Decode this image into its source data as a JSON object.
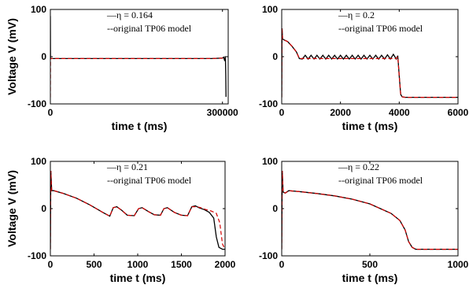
{
  "colors": {
    "simulated": "#000000",
    "original": "#d40000"
  },
  "chart_data": [
    {
      "type": "line",
      "xlabel": "time t (ms)",
      "ylabel": "Voltage V (mV)",
      "xlim": [
        0,
        310000
      ],
      "ylim": [
        -100,
        100
      ],
      "xticks": [
        0,
        300000
      ],
      "xtick_labels": [
        "0",
        "300000"
      ],
      "yticks": [
        -100,
        0,
        100
      ],
      "ytick_labels": [
        "-100",
        "0",
        "100"
      ],
      "legend": {
        "position": "top-right",
        "entries": [
          "—η = 0.164",
          "--original TP06 model"
        ]
      },
      "series": [
        {
          "style": "solid",
          "color": "#000000",
          "x": [
            0,
            300,
            1200,
            4000,
            50000,
            150000,
            280000,
            300000,
            302000,
            304000,
            304800,
            305200,
            305700,
            306200
          ],
          "y": [
            86,
            -3,
            -4,
            -4,
            -4,
            -4,
            -4,
            -3,
            -1,
            -9,
            1,
            -5,
            -40,
            -85
          ]
        },
        {
          "style": "dashed",
          "color": "#d40000",
          "x": [
            0,
            300,
            1200,
            4000,
            50000,
            150000,
            280000,
            300000,
            305000
          ],
          "y": [
            -86,
            -3,
            -4,
            -4,
            -4,
            -4,
            -4,
            -3,
            -3
          ]
        }
      ]
    },
    {
      "type": "line",
      "xlabel": "time t (ms)",
      "ylabel": "",
      "xlim": [
        0,
        6000
      ],
      "ylim": [
        -100,
        100
      ],
      "xticks": [
        0,
        2000,
        4000,
        6000
      ],
      "xtick_labels": [
        "0",
        "2000",
        "4000",
        "6000"
      ],
      "yticks": [
        -100,
        0,
        100
      ],
      "ytick_labels": [
        "-100",
        "0",
        "100"
      ],
      "legend": {
        "position": "top-right",
        "entries": [
          "—η = 0.2",
          "--original TP06 model"
        ]
      },
      "series": [
        {
          "style": "solid",
          "color": "#000000",
          "x": [
            0,
            10,
            30,
            60,
            200,
            350,
            500,
            600,
            700,
            800,
            900,
            1000,
            1100,
            1200,
            1300,
            1400,
            1500,
            1600,
            1700,
            1800,
            1900,
            2000,
            2100,
            2200,
            2300,
            2400,
            2500,
            2600,
            2700,
            2800,
            2900,
            3000,
            3100,
            3200,
            3300,
            3400,
            3500,
            3600,
            3700,
            3800,
            3900,
            3950,
            4000,
            4050,
            4100,
            4200,
            5000,
            6000
          ],
          "y": [
            -86,
            60,
            38,
            36,
            32,
            22,
            10,
            -4,
            -5,
            3,
            -5,
            3,
            -5,
            3,
            -5,
            3,
            -5,
            3,
            -5,
            3,
            -5,
            3,
            -5,
            3,
            -5,
            3,
            -5,
            3,
            -5,
            3,
            -5,
            3,
            -5,
            3,
            -5,
            3,
            -5,
            4,
            -5,
            5,
            -5,
            2,
            -40,
            -80,
            -85,
            -86,
            -86,
            -86
          ]
        },
        {
          "style": "dashed",
          "color": "#d40000",
          "x": [
            0,
            10,
            30,
            60,
            200,
            350,
            500,
            600,
            900,
            1200,
            1500,
            1800,
            2100,
            2400,
            2700,
            3000,
            3300,
            3600,
            3900,
            3950,
            4000,
            4050,
            4100,
            4200,
            5000,
            6000
          ],
          "y": [
            -86,
            60,
            38,
            36,
            32,
            22,
            10,
            -4,
            -4,
            -4,
            -4,
            -4,
            -4,
            -4,
            -4,
            -4,
            -4,
            -4,
            -4,
            0,
            -40,
            -80,
            -85,
            -86,
            -86,
            -86
          ]
        }
      ]
    },
    {
      "type": "line",
      "xlabel": "time t (ms)",
      "ylabel": "Voltage V (mV)",
      "xlim": [
        0,
        2000
      ],
      "ylim": [
        -100,
        100
      ],
      "xticks": [
        0,
        500,
        1000,
        1500,
        2000
      ],
      "xtick_labels": [
        "0",
        "500",
        "1000",
        "1500",
        "2000"
      ],
      "yticks": [
        -100,
        0,
        100
      ],
      "ytick_labels": [
        "-100",
        "0",
        "100"
      ],
      "legend": {
        "position": "top-right",
        "entries": [
          "—η = 0.21",
          "--original TP06 model"
        ]
      },
      "series": [
        {
          "style": "solid",
          "color": "#000000",
          "x": [
            0,
            5,
            15,
            40,
            150,
            300,
            450,
            600,
            680,
            720,
            760,
            820,
            880,
            960,
            1010,
            1050,
            1120,
            1190,
            1260,
            1300,
            1340,
            1420,
            1500,
            1570,
            1620,
            1660,
            1700,
            1760,
            1820,
            1870,
            1900,
            1930,
            1970,
            2000
          ],
          "y": [
            -86,
            80,
            38,
            38,
            32,
            22,
            8,
            -8,
            -16,
            2,
            4,
            -4,
            -14,
            -15,
            0,
            2,
            -6,
            -13,
            -14,
            0,
            2,
            -8,
            -14,
            -15,
            4,
            6,
            2,
            -2,
            -8,
            -20,
            -60,
            -82,
            -86,
            -86
          ]
        },
        {
          "style": "dashed",
          "color": "#d40000",
          "x": [
            0,
            5,
            15,
            40,
            150,
            300,
            450,
            600,
            680,
            720,
            760,
            820,
            880,
            960,
            1010,
            1050,
            1120,
            1190,
            1260,
            1300,
            1340,
            1420,
            1500,
            1570,
            1620,
            1680,
            1720,
            1780,
            1840,
            1900,
            1940,
            1970,
            2000
          ],
          "y": [
            -86,
            80,
            38,
            38,
            32,
            22,
            8,
            -8,
            -16,
            2,
            4,
            -4,
            -14,
            -15,
            0,
            2,
            -6,
            -13,
            -14,
            0,
            2,
            -8,
            -14,
            -15,
            4,
            4,
            2,
            -2,
            -5,
            -10,
            -30,
            -75,
            -86
          ]
        }
      ]
    },
    {
      "type": "line",
      "xlabel": "time t (ms)",
      "ylabel": "",
      "xlim": [
        0,
        1000
      ],
      "ylim": [
        -100,
        100
      ],
      "xticks": [
        0,
        500,
        1000
      ],
      "xtick_labels": [
        "0",
        "500",
        "1000"
      ],
      "yticks": [
        -100,
        0,
        100
      ],
      "ytick_labels": [
        "-100",
        "0",
        "100"
      ],
      "legend": {
        "position": "top-right",
        "entries": [
          "—η = 0.22",
          "--original TP06 model"
        ]
      },
      "series": [
        {
          "style": "solid",
          "color": "#000000",
          "x": [
            0,
            3,
            8,
            20,
            40,
            100,
            200,
            300,
            400,
            500,
            560,
            620,
            670,
            700,
            720,
            740,
            760,
            800,
            900,
            1000
          ],
          "y": [
            -86,
            80,
            35,
            33,
            38,
            36,
            32,
            27,
            20,
            10,
            0,
            -10,
            -25,
            -45,
            -70,
            -82,
            -86,
            -86,
            -86,
            -86
          ]
        },
        {
          "style": "dashed",
          "color": "#d40000",
          "x": [
            0,
            3,
            8,
            20,
            40,
            100,
            200,
            300,
            400,
            500,
            560,
            620,
            670,
            700,
            720,
            740,
            760,
            800,
            900,
            1000
          ],
          "y": [
            -86,
            80,
            35,
            33,
            38,
            36,
            32,
            27,
            20,
            10,
            0,
            -10,
            -25,
            -45,
            -70,
            -82,
            -86,
            -86,
            -86,
            -86
          ]
        }
      ]
    }
  ]
}
